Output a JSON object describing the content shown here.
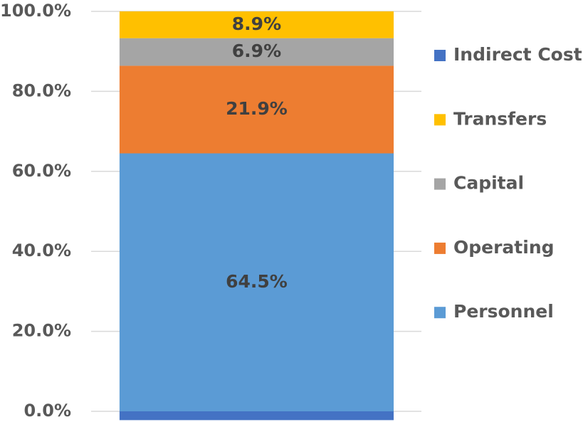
{
  "chart_data": {
    "type": "stacked_bar",
    "categories": [
      null
    ],
    "series": [
      {
        "name": "Personnel",
        "color": "#5b9bd5",
        "values": [
          64.5
        ],
        "value_labels": [
          "64.5%"
        ]
      },
      {
        "name": "Operating",
        "color": "#ed7d31",
        "values": [
          21.9
        ],
        "value_labels": [
          "21.9%"
        ]
      },
      {
        "name": "Capital",
        "color": "#a5a5a5",
        "values": [
          6.9
        ],
        "value_labels": [
          "6.9%"
        ]
      },
      {
        "name": "Transfers",
        "color": "#ffc000",
        "values": [
          8.9
        ],
        "value_labels": [
          "8.9%"
        ]
      },
      {
        "name": "Indirect Cost",
        "color": "#4472c4",
        "values": [
          -2.2
        ]
      }
    ],
    "ylim": [
      0,
      100
    ],
    "yticks": [
      {
        "value": 0,
        "label": "0.0%"
      },
      {
        "value": 20,
        "label": "20.0%"
      },
      {
        "value": 40,
        "label": "40.0%"
      },
      {
        "value": 60,
        "label": "60.0%"
      },
      {
        "value": 80,
        "label": "80.0%"
      },
      {
        "value": 100,
        "label": "100.0%"
      }
    ],
    "grid": true,
    "legend": "right"
  }
}
